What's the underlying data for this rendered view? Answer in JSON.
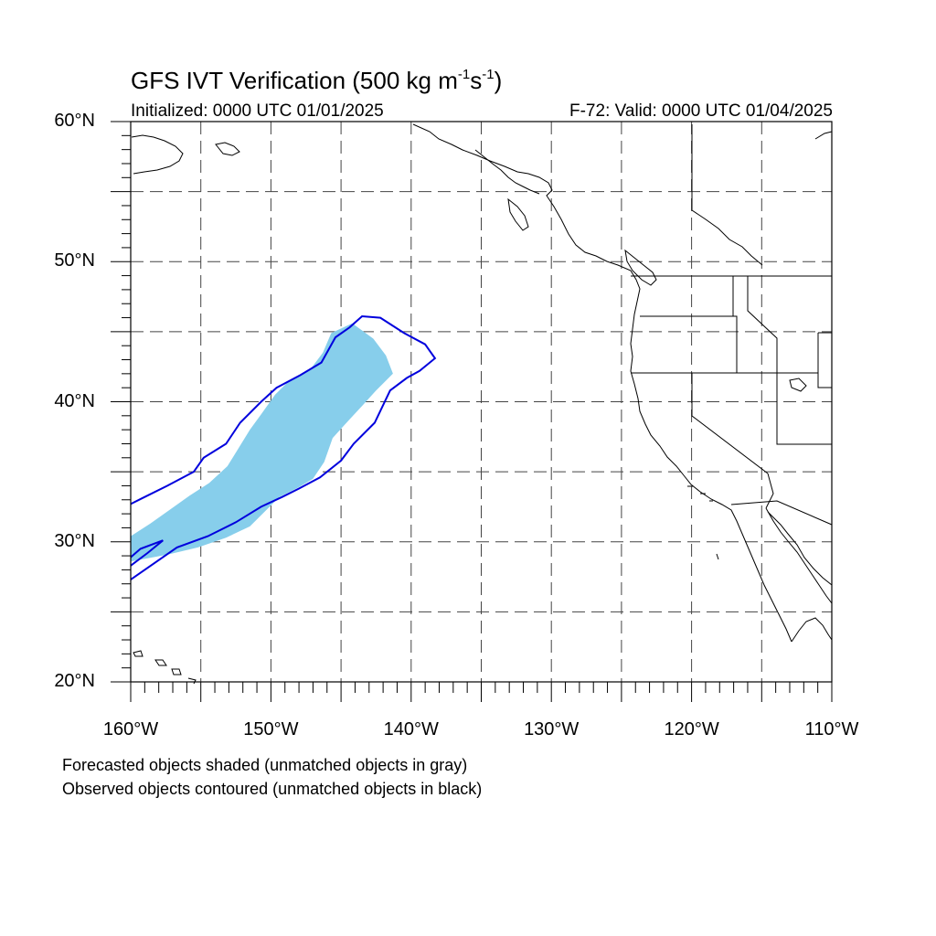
{
  "title": {
    "main": "GFS IVT Verification (500 kg m",
    "sup1": "-1",
    "mid": "s",
    "sup2": "-1",
    "end": ")"
  },
  "subtitle_left": "Initialized: 0000 UTC 01/01/2025",
  "subtitle_right": "F-72: Valid: 0000 UTC 01/04/2025",
  "notes": [
    "Forecasted objects shaded (unmatched objects in gray)",
    "Observed objects contoured (unmatched objects in black)"
  ],
  "colors": {
    "forecast_fill": "#87ceeb",
    "observed_contour": "#0000dd",
    "coastline": "#000000",
    "grid": "#444444"
  },
  "map": {
    "lon_range": [
      -160,
      -110
    ],
    "lat_range": [
      20,
      60
    ],
    "grid_step_deg": 5,
    "lat_labels": [
      {
        "value": 60,
        "text": "60°N"
      },
      {
        "value": 50,
        "text": "50°N"
      },
      {
        "value": 40,
        "text": "40°N"
      },
      {
        "value": 30,
        "text": "30°N"
      },
      {
        "value": 20,
        "text": "20°N"
      }
    ],
    "lon_labels": [
      {
        "value": -160,
        "text": "160°W"
      },
      {
        "value": -150,
        "text": "150°W"
      },
      {
        "value": -140,
        "text": "140°W"
      },
      {
        "value": -130,
        "text": "130°W"
      },
      {
        "value": -120,
        "text": "120°W"
      },
      {
        "value": -110,
        "text": "110°W"
      }
    ],
    "forecast_object": [
      [
        -160,
        30.4
      ],
      [
        -158.6,
        31.3
      ],
      [
        -157.2,
        32.3
      ],
      [
        -155.8,
        33.3
      ],
      [
        -154.4,
        34.2
      ],
      [
        -153.1,
        35.4
      ],
      [
        -152.3,
        36.7
      ],
      [
        -151.5,
        38.0
      ],
      [
        -150.7,
        39.1
      ],
      [
        -149.7,
        40.5
      ],
      [
        -148.6,
        41.6
      ],
      [
        -147.2,
        42.3
      ],
      [
        -146.3,
        43.5
      ],
      [
        -145.7,
        44.9
      ],
      [
        -144.2,
        45.6
      ],
      [
        -142.7,
        44.5
      ],
      [
        -141.8,
        43.3
      ],
      [
        -141.3,
        42.0
      ],
      [
        -142.5,
        40.8
      ],
      [
        -143.5,
        39.7
      ],
      [
        -144.7,
        38.4
      ],
      [
        -145.6,
        37.4
      ],
      [
        -146.2,
        35.7
      ],
      [
        -147.0,
        34.5
      ],
      [
        -148.0,
        33.9
      ],
      [
        -149.4,
        33.2
      ],
      [
        -150.5,
        32.1
      ],
      [
        -151.5,
        31.1
      ],
      [
        -153.2,
        30.3
      ],
      [
        -155.2,
        29.6
      ],
      [
        -157.3,
        29.1
      ],
      [
        -160,
        28.6
      ]
    ],
    "observed_object": [
      [
        -160,
        32.7
      ],
      [
        -159.2,
        33.1
      ],
      [
        -157.4,
        34.0
      ],
      [
        -155.5,
        35.0
      ],
      [
        -154.8,
        36.0
      ],
      [
        -153.2,
        37.0
      ],
      [
        -152.2,
        38.5
      ],
      [
        -150.7,
        40.0
      ],
      [
        -149.6,
        41.0
      ],
      [
        -147.9,
        41.9
      ],
      [
        -146.4,
        42.8
      ],
      [
        -145.4,
        44.6
      ],
      [
        -144.4,
        45.3
      ],
      [
        -143.5,
        46.1
      ],
      [
        -142.2,
        46.0
      ],
      [
        -140.5,
        44.9
      ],
      [
        -139.0,
        44.1
      ],
      [
        -138.3,
        43.1
      ],
      [
        -139.4,
        42.2
      ],
      [
        -140.3,
        41.7
      ],
      [
        -141.5,
        40.8
      ],
      [
        -142.6,
        38.5
      ],
      [
        -144.1,
        37.0
      ],
      [
        -145.0,
        35.8
      ],
      [
        -146.5,
        34.6
      ],
      [
        -148.0,
        33.8
      ],
      [
        -149.2,
        33.2
      ],
      [
        -150.7,
        32.5
      ],
      [
        -152.5,
        31.4
      ],
      [
        -154.5,
        30.4
      ],
      [
        -156.7,
        29.6
      ],
      [
        -160,
        27.3
      ]
    ],
    "observed_small_object": [
      [
        -160,
        28.3
      ],
      [
        -158.8,
        29.2
      ],
      [
        -157.7,
        30.1
      ],
      [
        -159.3,
        29.5
      ],
      [
        -160,
        28.9
      ]
    ]
  }
}
